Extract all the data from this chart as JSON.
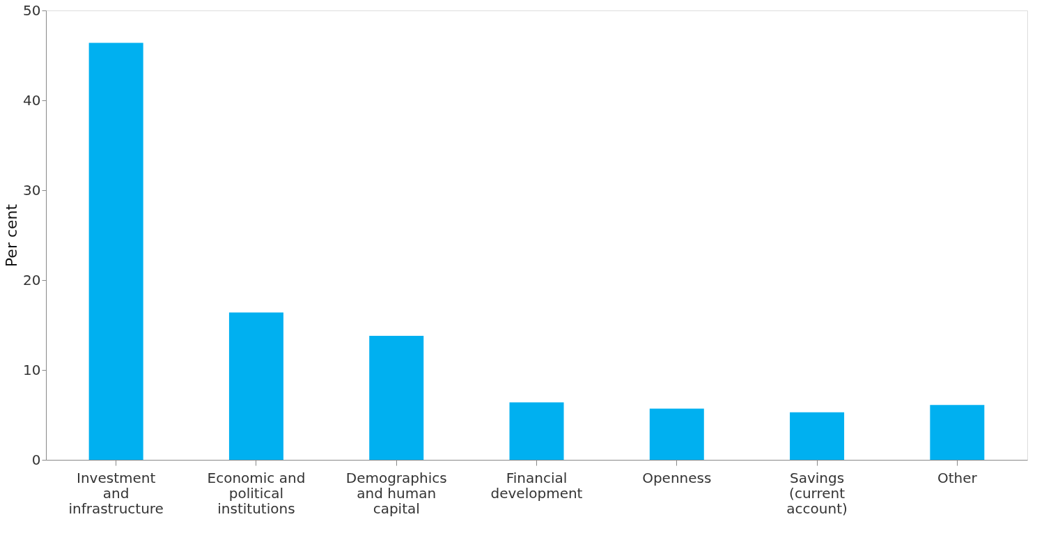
{
  "chart_data": {
    "type": "bar",
    "ylabel": "Per cent",
    "categories": [
      "Investment and infrastructure",
      "Economic and political institutions",
      "Demographics and human capital",
      "Financial development",
      "Openness",
      "Savings (current account)",
      "Other"
    ],
    "values": [
      46.4,
      16.4,
      13.8,
      6.4,
      5.7,
      5.3,
      6.1
    ],
    "color": "#00b0f0",
    "ylim": [
      0,
      50
    ],
    "yticks": [
      0,
      10,
      20,
      30,
      40,
      50
    ],
    "grid": false
  }
}
